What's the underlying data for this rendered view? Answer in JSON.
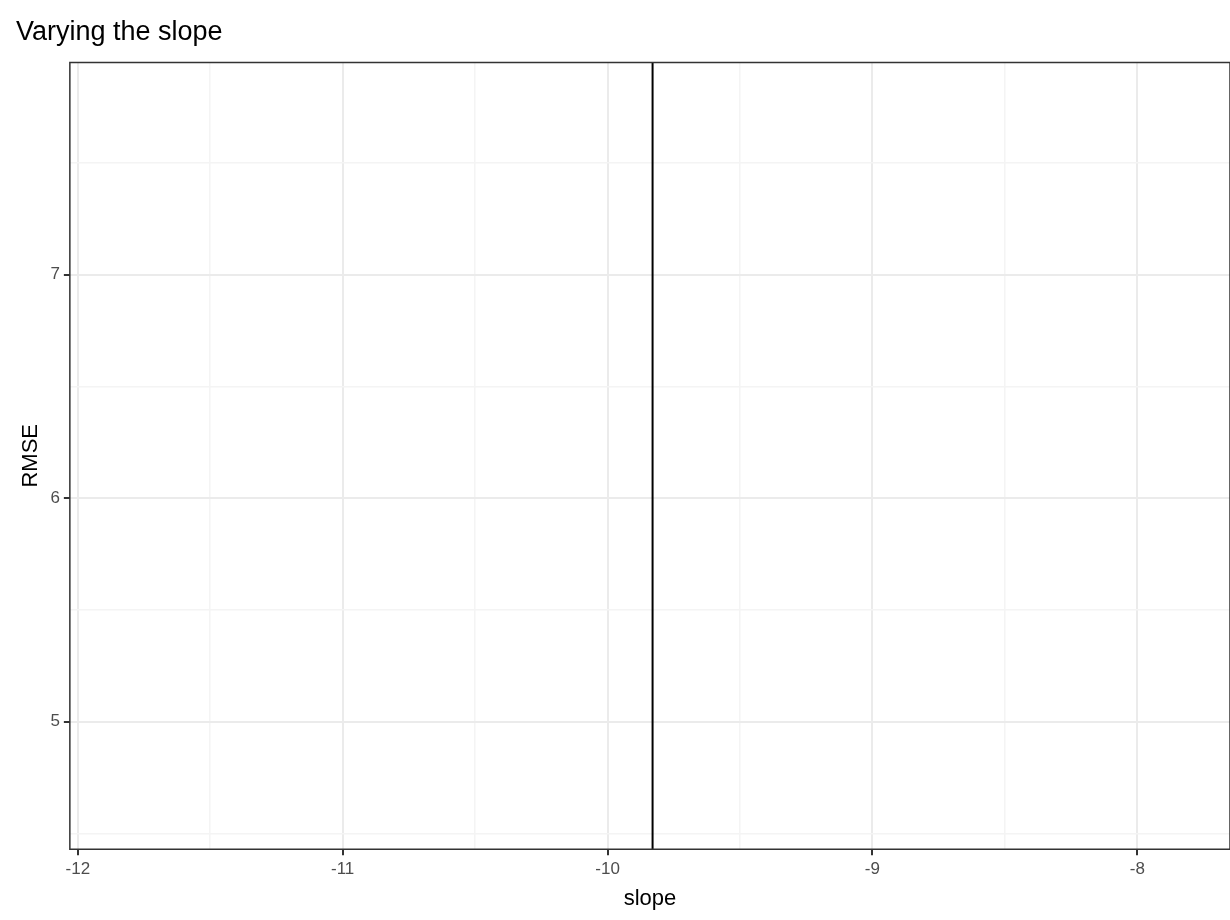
{
  "chart_data": {
    "type": "line",
    "title": "Varying the slope",
    "xlabel": "slope",
    "ylabel": "RMSE",
    "xlim": [
      -12.03,
      -7.65
    ],
    "ylim": [
      4.43,
      7.95
    ],
    "xticks": [
      -12,
      {
        "value": -11.5,
        "label": null
      },
      -11,
      {
        "value": -10.5,
        "label": null
      },
      -10,
      {
        "value": -9.5,
        "label": null
      },
      -9,
      {
        "value": -8.5,
        "label": null
      },
      -8
    ],
    "yticks": [
      {
        "value": 4.5,
        "label": null
      },
      5,
      {
        "value": 5.5,
        "label": null
      },
      6,
      {
        "value": 6.5,
        "label": null
      },
      7,
      {
        "value": 7.5,
        "label": null
      }
    ],
    "ref_lines": [
      {
        "axis": "x",
        "value": -9.83,
        "color": "#000000"
      }
    ],
    "grid": true,
    "legend": false
  }
}
